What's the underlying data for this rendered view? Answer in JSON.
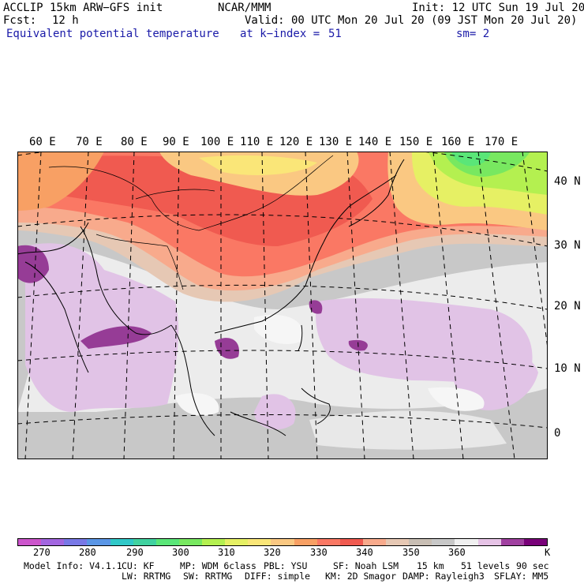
{
  "header": {
    "model": "ACCLIP 15km ARW−GFS init",
    "org": "NCAR/MMM",
    "init": "Init: 12 UTC Sun 19 Jul 20",
    "fcst_label": "Fcst:",
    "fcst_value": "12 h",
    "valid": "Valid: 00 UTC Mon 20 Jul 20 (09 JST Mon 20 Jul 20)",
    "field": "Equivalent potential temperature",
    "level": "at k−index =",
    "level_value": "51",
    "smooth": "sm= 2"
  },
  "longitude_labels": [
    "60 E",
    "70 E",
    "80 E",
    "90 E",
    "100 E",
    "110 E",
    "120 E",
    "130 E",
    "140 E",
    "150 E",
    "160 E",
    "170 E"
  ],
  "latitude_labels": [
    "40 N",
    "30 N",
    "20 N",
    "10 N",
    "0"
  ],
  "colorbar": {
    "colors": [
      "#cc55cc",
      "#a266e0",
      "#7878e6",
      "#5a96e6",
      "#30c8c8",
      "#40d2a0",
      "#5ae678",
      "#78e860",
      "#b4f050",
      "#e6f064",
      "#fae678",
      "#fac882",
      "#f8a064",
      "#fa7864",
      "#f05a50",
      "#f8aa8c",
      "#e6c8b4",
      "#c8beb4",
      "#c8c8c8",
      "#f0f0f0",
      "#e6c3e6",
      "#a040a0",
      "#780078"
    ],
    "tick_labels": [
      "270",
      "280",
      "290",
      "300",
      "310",
      "320",
      "330",
      "340",
      "350",
      "360"
    ],
    "unit": "K"
  },
  "footer": {
    "line1": [
      "Model Info: V4.1.1",
      "CU: KF",
      "MP: WDM 6class",
      "PBL: YSU",
      "SF: Noah LSM",
      "15 km",
      "51 levels",
      "90 sec"
    ],
    "line2": [
      "LW: RRTMG",
      "SW: RRTMG",
      "DIFF: simple",
      "KM: 2D Smagor",
      "DAMP: Rayleigh3",
      "SFLAY: MM5"
    ]
  }
}
